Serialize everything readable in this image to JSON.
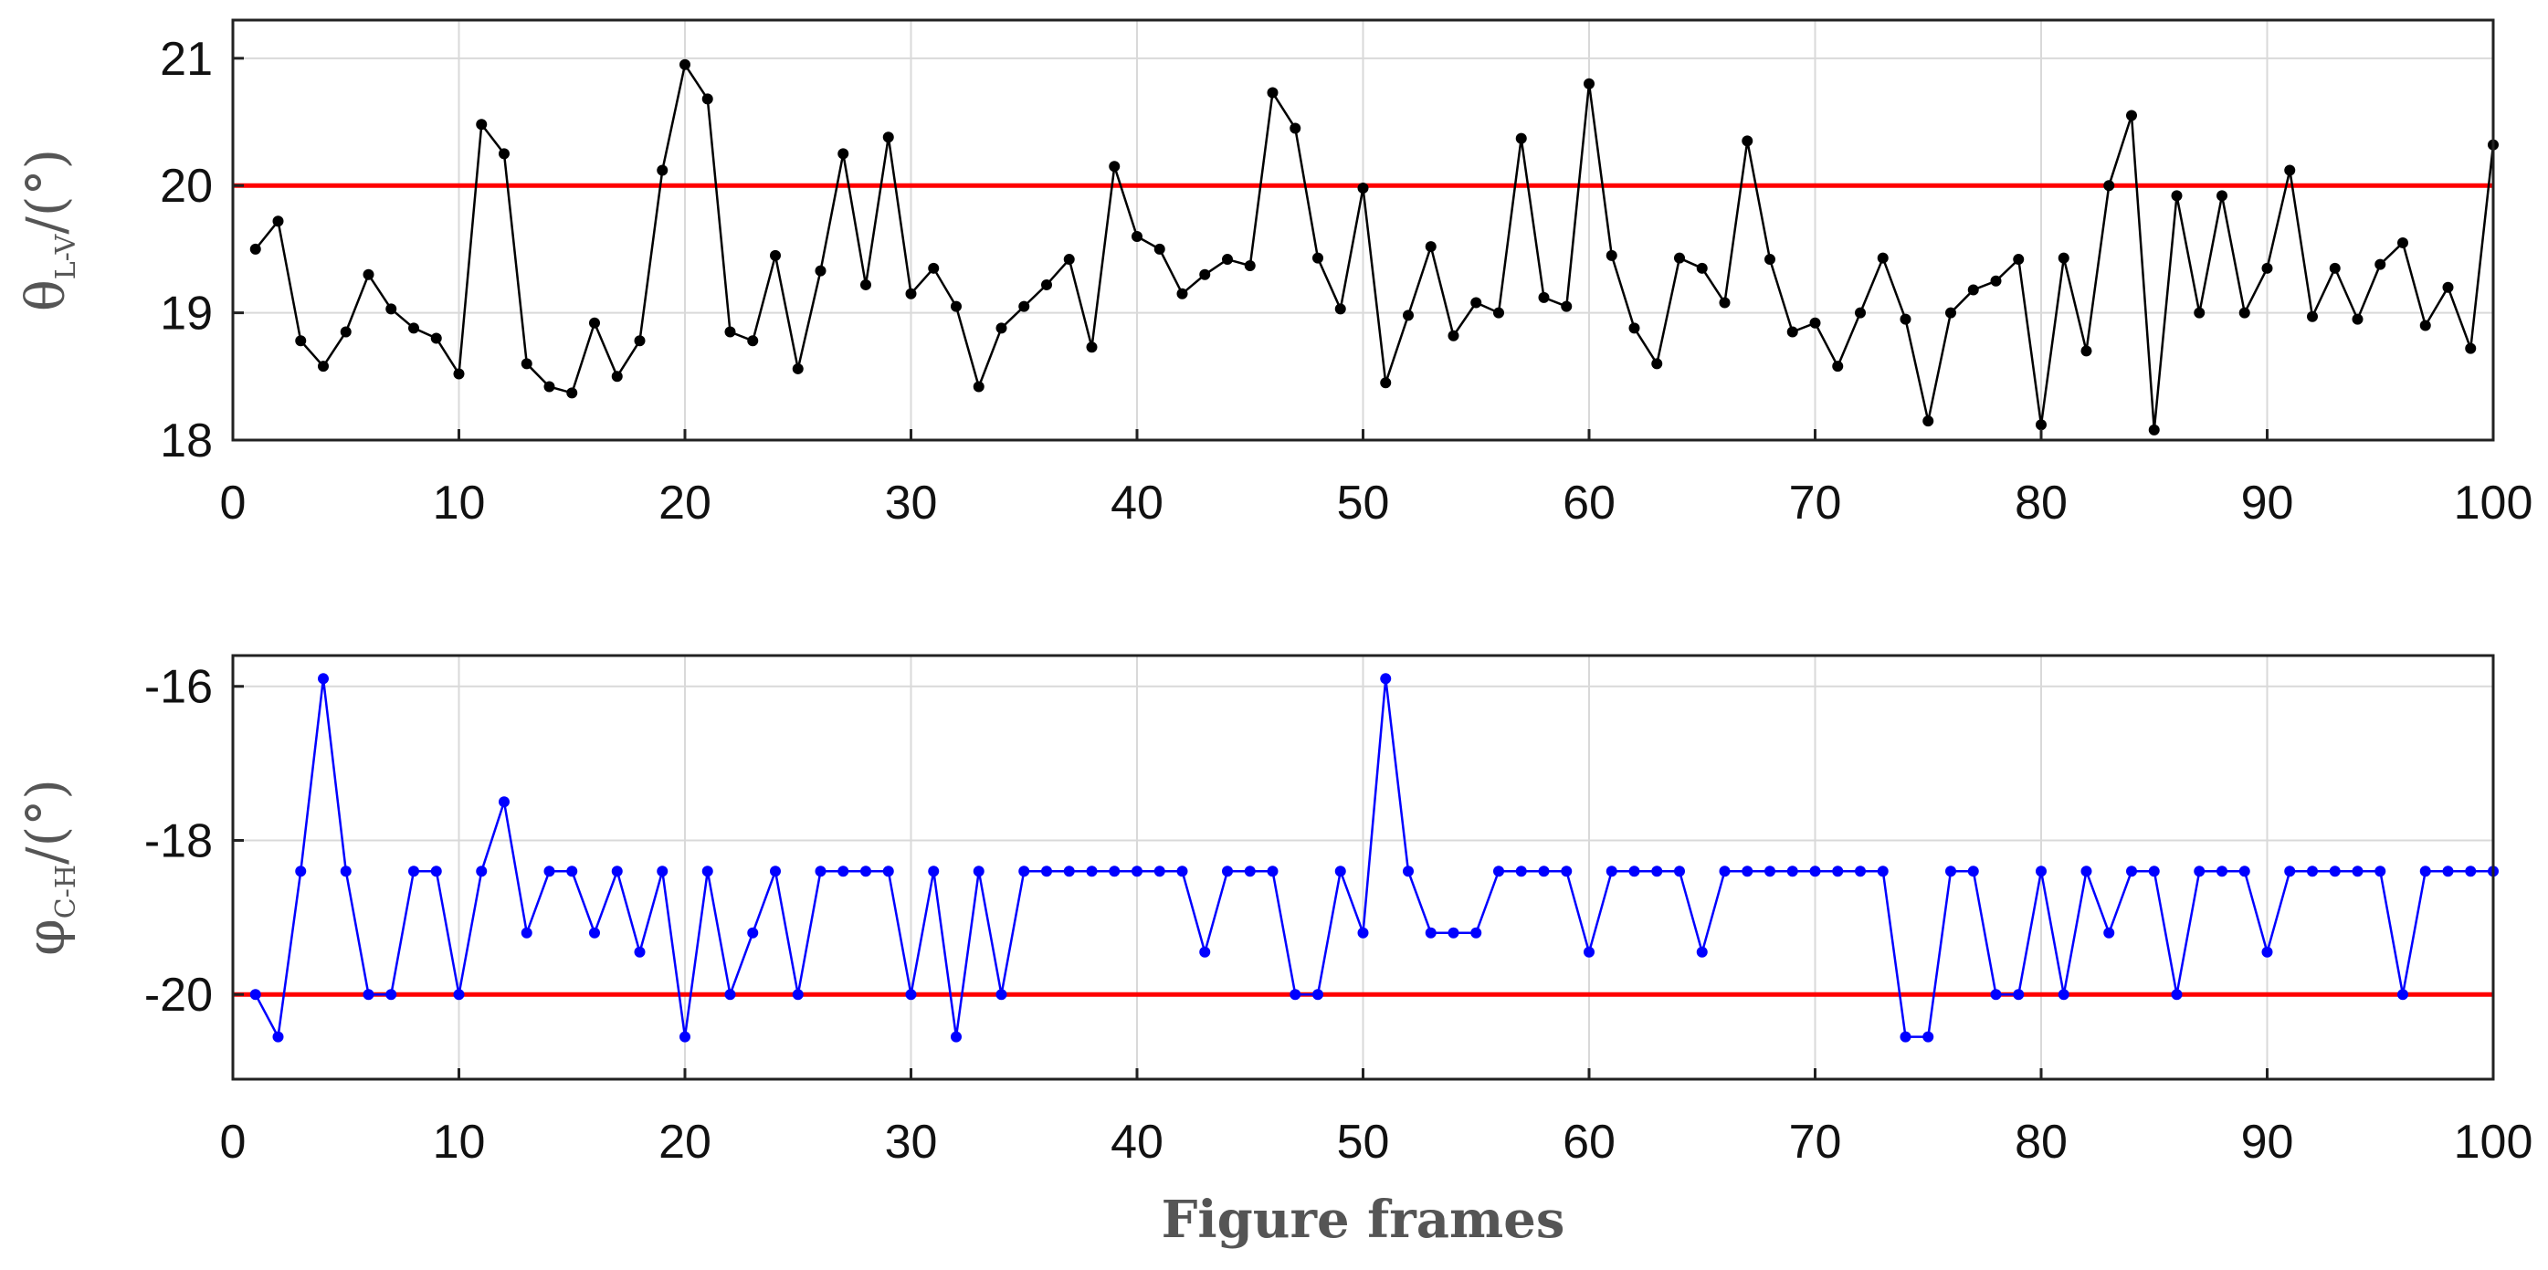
{
  "chart_data": [
    {
      "type": "line",
      "ylabel_main": "θ",
      "ylabel_sub": "L-V",
      "ylabel_suffix": "/(°)",
      "xlabel": "",
      "xlim": [
        0,
        100
      ],
      "ylim": [
        18,
        21.3
      ],
      "xticks": [
        0,
        10,
        20,
        30,
        40,
        50,
        60,
        70,
        80,
        90,
        100
      ],
      "yticks": [
        18,
        19,
        20,
        21
      ],
      "grid": true,
      "reference_line": {
        "y": 20,
        "color": "#ff0000"
      },
      "series_color": "#000000",
      "x": [
        1,
        2,
        3,
        4,
        5,
        6,
        7,
        8,
        9,
        10,
        11,
        12,
        13,
        14,
        15,
        16,
        17,
        18,
        19,
        20,
        21,
        22,
        23,
        24,
        25,
        26,
        27,
        28,
        29,
        30,
        31,
        32,
        33,
        34,
        35,
        36,
        37,
        38,
        39,
        40,
        41,
        42,
        43,
        44,
        45,
        46,
        47,
        48,
        49,
        50,
        51,
        52,
        53,
        54,
        55,
        56,
        57,
        58,
        59,
        60,
        61,
        62,
        63,
        64,
        65,
        66,
        67,
        68,
        69,
        70,
        71,
        72,
        73,
        74,
        75,
        76,
        77,
        78,
        79,
        80,
        81,
        82,
        83,
        84,
        85,
        86,
        87,
        88,
        89,
        90,
        91,
        92,
        93,
        94,
        95,
        96,
        97,
        98,
        99,
        100
      ],
      "values": [
        19.5,
        19.72,
        18.78,
        18.58,
        18.85,
        19.3,
        19.03,
        18.88,
        18.8,
        18.52,
        20.48,
        20.25,
        18.6,
        18.42,
        18.37,
        18.92,
        18.5,
        18.78,
        20.12,
        20.95,
        20.68,
        18.85,
        18.78,
        19.45,
        18.56,
        19.33,
        20.25,
        19.22,
        20.38,
        19.15,
        19.35,
        19.05,
        18.42,
        18.88,
        19.05,
        19.22,
        19.42,
        18.73,
        20.15,
        19.6,
        19.5,
        19.15,
        19.3,
        19.42,
        19.37,
        20.73,
        20.45,
        19.43,
        19.03,
        19.98,
        18.45,
        18.98,
        19.52,
        18.82,
        19.08,
        19.0,
        20.37,
        19.12,
        19.05,
        20.8,
        19.45,
        18.88,
        18.6,
        19.43,
        19.35,
        19.08,
        20.35,
        19.42,
        18.85,
        18.92,
        18.58,
        19.0,
        19.43,
        18.95,
        18.15,
        19.0,
        19.18,
        19.25,
        19.42,
        18.12,
        19.43,
        18.7,
        20.0,
        20.55,
        18.08,
        19.92,
        19.0,
        19.92,
        19.0,
        19.35,
        20.12,
        18.97,
        19.35,
        18.95,
        19.38,
        19.55,
        18.9,
        19.2,
        18.72,
        20.32
      ]
    },
    {
      "type": "line",
      "ylabel_main": "φ",
      "ylabel_sub": "C-H",
      "ylabel_suffix": "/(°)",
      "xlabel": "Figure frames",
      "xlim": [
        0,
        100
      ],
      "ylim": [
        -21.1,
        -15.6
      ],
      "xticks": [
        0,
        10,
        20,
        30,
        40,
        50,
        60,
        70,
        80,
        90,
        100
      ],
      "yticks": [
        -20,
        -18,
        -16
      ],
      "grid": true,
      "reference_line": {
        "y": -20,
        "color": "#ff0000"
      },
      "series_color": "#0000ff",
      "x": [
        1,
        2,
        3,
        4,
        5,
        6,
        7,
        8,
        9,
        10,
        11,
        12,
        13,
        14,
        15,
        16,
        17,
        18,
        19,
        20,
        21,
        22,
        23,
        24,
        25,
        26,
        27,
        28,
        29,
        30,
        31,
        32,
        33,
        34,
        35,
        36,
        37,
        38,
        39,
        40,
        41,
        42,
        43,
        44,
        45,
        46,
        47,
        48,
        49,
        50,
        51,
        52,
        53,
        54,
        55,
        56,
        57,
        58,
        59,
        60,
        61,
        62,
        63,
        64,
        65,
        66,
        67,
        68,
        69,
        70,
        71,
        72,
        73,
        74,
        75,
        76,
        77,
        78,
        79,
        80,
        81,
        82,
        83,
        84,
        85,
        86,
        87,
        88,
        89,
        90,
        91,
        92,
        93,
        94,
        95,
        96,
        97,
        98,
        99,
        100
      ],
      "values": [
        -20,
        -20.55,
        -18.4,
        -15.9,
        -18.4,
        -20,
        -20,
        -18.4,
        -18.4,
        -20,
        -18.4,
        -17.5,
        -19.2,
        -18.4,
        -18.4,
        -19.2,
        -18.4,
        -19.45,
        -18.4,
        -20.55,
        -18.4,
        -20,
        -19.2,
        -18.4,
        -20,
        -18.4,
        -18.4,
        -18.4,
        -18.4,
        -20,
        -18.4,
        -20.55,
        -18.4,
        -20,
        -18.4,
        -18.4,
        -18.4,
        -18.4,
        -18.4,
        -18.4,
        -18.4,
        -18.4,
        -19.45,
        -18.4,
        -18.4,
        -18.4,
        -20,
        -20,
        -18.4,
        -19.2,
        -15.9,
        -18.4,
        -19.2,
        -19.2,
        -19.2,
        -18.4,
        -18.4,
        -18.4,
        -18.4,
        -19.45,
        -18.4,
        -18.4,
        -18.4,
        -18.4,
        -19.45,
        -18.4,
        -18.4,
        -18.4,
        -18.4,
        -18.4,
        -18.4,
        -18.4,
        -18.4,
        -20.55,
        -20.55,
        -18.4,
        -18.4,
        -20,
        -20,
        -18.4,
        -20,
        -18.4,
        -19.2,
        -18.4,
        -18.4,
        -20,
        -18.4,
        -18.4,
        -18.4,
        -19.45,
        -18.4,
        -18.4,
        -18.4,
        -18.4,
        -18.4,
        -20,
        -18.4,
        -18.4,
        -18.4,
        -18.4
      ]
    }
  ]
}
